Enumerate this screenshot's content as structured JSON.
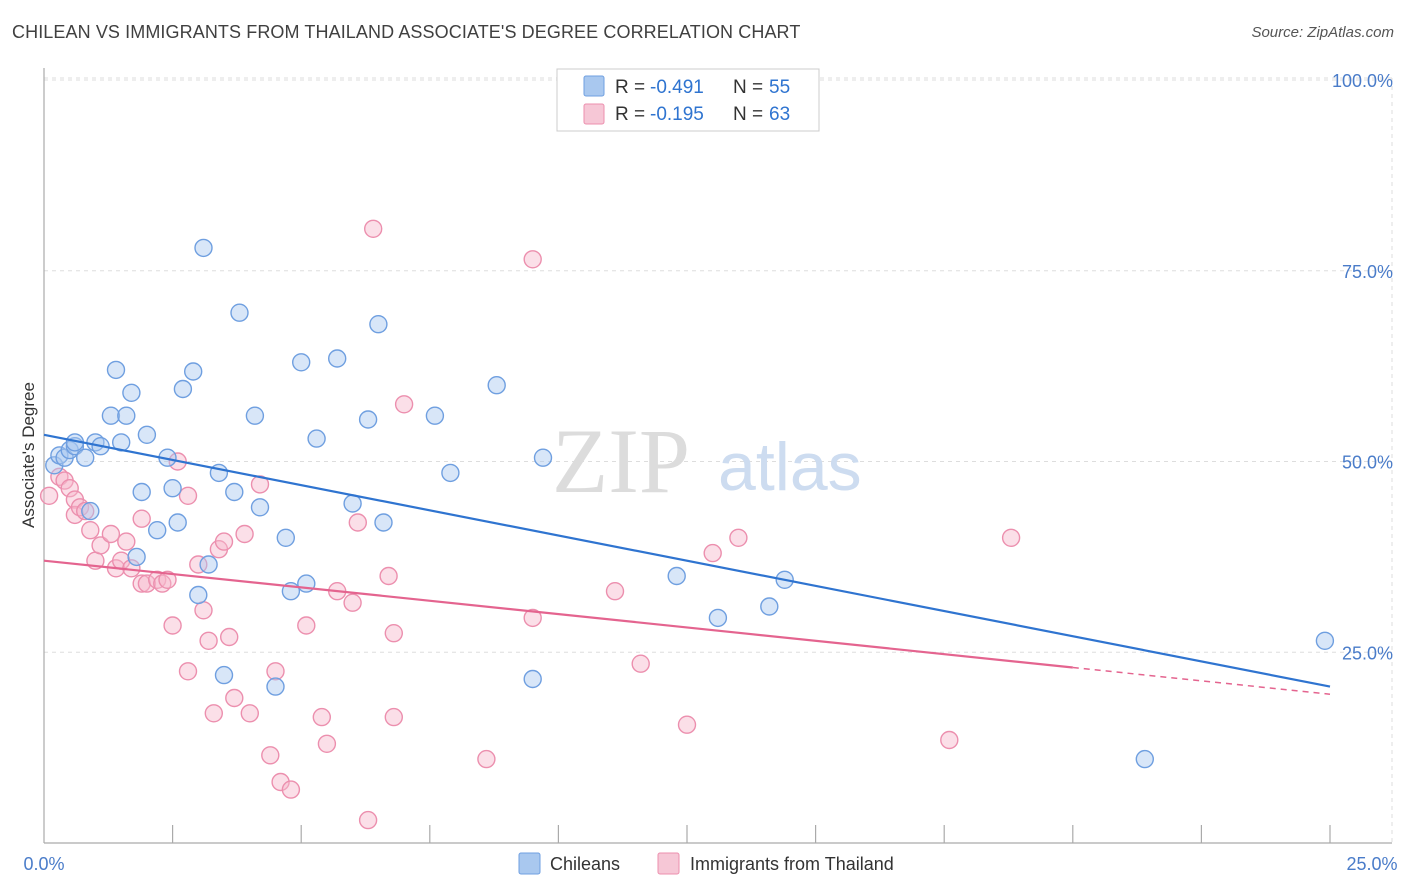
{
  "header": {
    "title": "CHILEAN VS IMMIGRANTS FROM THAILAND ASSOCIATE'S DEGREE CORRELATION CHART",
    "source": "Source: ZipAtlas.com"
  },
  "colors": {
    "blue_fill": "#a9c8ef",
    "blue_stroke": "#6f9fe0",
    "blue_line": "#2f74d0",
    "pink_fill": "#f6b8cb",
    "pink_stroke": "#ec8fae",
    "pink_line": "#e4648f",
    "tick_text": "#4a7cc9",
    "grid": "#dddddd"
  },
  "watermark": {
    "zip": "ZIP",
    "atlas": "atlas"
  },
  "legend_stats": [
    {
      "r_label": "R = ",
      "r_value": "-0.491",
      "n_label": "N = ",
      "n_value": "55"
    },
    {
      "r_label": "R = ",
      "r_value": "-0.195",
      "n_label": "N = ",
      "n_value": "63"
    }
  ],
  "chart_data": {
    "type": "scatter",
    "title": "CHILEAN VS IMMIGRANTS FROM THAILAND ASSOCIATE'S DEGREE CORRELATION CHART",
    "xlabel": "",
    "ylabel": "Associate's Degree",
    "xlim": [
      0,
      25
    ],
    "ylim": [
      0,
      100
    ],
    "x_tick_labels": [
      "0.0%",
      "25.0%"
    ],
    "y_ticks": [
      {
        "value": 25,
        "label": "25.0%"
      },
      {
        "value": 50,
        "label": "50.0%"
      },
      {
        "value": 75,
        "label": "75.0%"
      },
      {
        "value": 100,
        "label": "100.0%"
      }
    ],
    "grid": true,
    "legend_position": "bottom-center",
    "series": [
      {
        "name": "Chileans",
        "color": "#6f9fe0",
        "r": -0.491,
        "n": 55,
        "trend": {
          "x0": 0,
          "y0": 53.5,
          "x1": 25,
          "y1": 20.5
        },
        "points": [
          [
            0.2,
            49.5
          ],
          [
            0.3,
            50.8
          ],
          [
            0.4,
            50.5
          ],
          [
            0.5,
            51.5
          ],
          [
            0.6,
            52
          ],
          [
            0.6,
            52.5
          ],
          [
            0.8,
            50.5
          ],
          [
            0.9,
            43.5
          ],
          [
            1.0,
            52.5
          ],
          [
            1.1,
            52.0
          ],
          [
            1.3,
            56.0
          ],
          [
            1.4,
            62.0
          ],
          [
            1.5,
            52.5
          ],
          [
            1.6,
            56.0
          ],
          [
            1.7,
            59.0
          ],
          [
            1.8,
            37.5
          ],
          [
            1.9,
            46.0
          ],
          [
            2.0,
            53.5
          ],
          [
            2.2,
            41.0
          ],
          [
            2.4,
            50.5
          ],
          [
            2.5,
            46.5
          ],
          [
            2.6,
            42.0
          ],
          [
            2.7,
            59.5
          ],
          [
            2.9,
            61.8
          ],
          [
            3.0,
            32.5
          ],
          [
            3.1,
            78.0
          ],
          [
            3.2,
            36.5
          ],
          [
            3.4,
            48.5
          ],
          [
            3.5,
            22.0
          ],
          [
            3.7,
            46.0
          ],
          [
            3.8,
            69.5
          ],
          [
            4.1,
            56.0
          ],
          [
            4.2,
            44.0
          ],
          [
            4.5,
            20.5
          ],
          [
            4.7,
            40.0
          ],
          [
            4.8,
            33.0
          ],
          [
            5.0,
            63.0
          ],
          [
            5.1,
            34.0
          ],
          [
            5.3,
            53.0
          ],
          [
            5.7,
            63.5
          ],
          [
            6.0,
            44.5
          ],
          [
            6.3,
            55.5
          ],
          [
            6.5,
            68.0
          ],
          [
            6.6,
            42.0
          ],
          [
            7.6,
            56.0
          ],
          [
            7.9,
            48.5
          ],
          [
            8.8,
            60.0
          ],
          [
            9.5,
            21.5
          ],
          [
            9.7,
            50.5
          ],
          [
            12.3,
            35.0
          ],
          [
            13.1,
            29.5
          ],
          [
            14.1,
            31.0
          ],
          [
            14.4,
            34.5
          ],
          [
            21.4,
            11.0
          ],
          [
            24.9,
            26.5
          ]
        ]
      },
      {
        "name": "Immigrants from Thailand",
        "color": "#ec8fae",
        "r": -0.195,
        "n": 63,
        "trend": {
          "x0": 0,
          "y0": 37.0,
          "x1": 20.0,
          "y1": 23.0,
          "dash_x1": 25,
          "dash_y1": 19.5
        },
        "points": [
          [
            0.1,
            45.5
          ],
          [
            0.3,
            48.0
          ],
          [
            0.4,
            47.5
          ],
          [
            0.5,
            46.5
          ],
          [
            0.6,
            45.0
          ],
          [
            0.6,
            43.0
          ],
          [
            0.7,
            44.0
          ],
          [
            0.8,
            43.5
          ],
          [
            0.9,
            41.0
          ],
          [
            1.0,
            37.0
          ],
          [
            1.1,
            39.0
          ],
          [
            1.3,
            40.5
          ],
          [
            1.4,
            36.0
          ],
          [
            1.5,
            37.0
          ],
          [
            1.6,
            39.5
          ],
          [
            1.7,
            36.0
          ],
          [
            1.9,
            34.0
          ],
          [
            1.9,
            42.5
          ],
          [
            2.0,
            34.0
          ],
          [
            2.2,
            34.5
          ],
          [
            2.3,
            34.0
          ],
          [
            2.4,
            34.5
          ],
          [
            2.5,
            28.5
          ],
          [
            2.6,
            50.0
          ],
          [
            2.8,
            45.5
          ],
          [
            2.8,
            22.5
          ],
          [
            3.0,
            36.5
          ],
          [
            3.1,
            30.5
          ],
          [
            3.2,
            26.5
          ],
          [
            3.3,
            17.0
          ],
          [
            3.4,
            38.5
          ],
          [
            3.5,
            39.5
          ],
          [
            3.6,
            27.0
          ],
          [
            3.7,
            19.0
          ],
          [
            3.9,
            40.5
          ],
          [
            4.0,
            17.0
          ],
          [
            4.2,
            47.0
          ],
          [
            4.4,
            11.5
          ],
          [
            4.5,
            22.5
          ],
          [
            4.6,
            8.0
          ],
          [
            4.8,
            7.0
          ],
          [
            5.1,
            28.5
          ],
          [
            5.4,
            16.5
          ],
          [
            5.5,
            13.0
          ],
          [
            5.7,
            33.0
          ],
          [
            6.0,
            31.5
          ],
          [
            6.1,
            42.0
          ],
          [
            6.3,
            3.0
          ],
          [
            6.4,
            80.5
          ],
          [
            6.7,
            35.0
          ],
          [
            6.8,
            27.5
          ],
          [
            6.8,
            16.5
          ],
          [
            7.0,
            57.5
          ],
          [
            8.6,
            11.0
          ],
          [
            9.5,
            76.5
          ],
          [
            9.5,
            29.5
          ],
          [
            11.1,
            33.0
          ],
          [
            11.6,
            23.5
          ],
          [
            12.5,
            15.5
          ],
          [
            13.0,
            38.0
          ],
          [
            13.5,
            40.0
          ],
          [
            17.6,
            13.5
          ],
          [
            18.8,
            40.0
          ]
        ]
      }
    ]
  }
}
